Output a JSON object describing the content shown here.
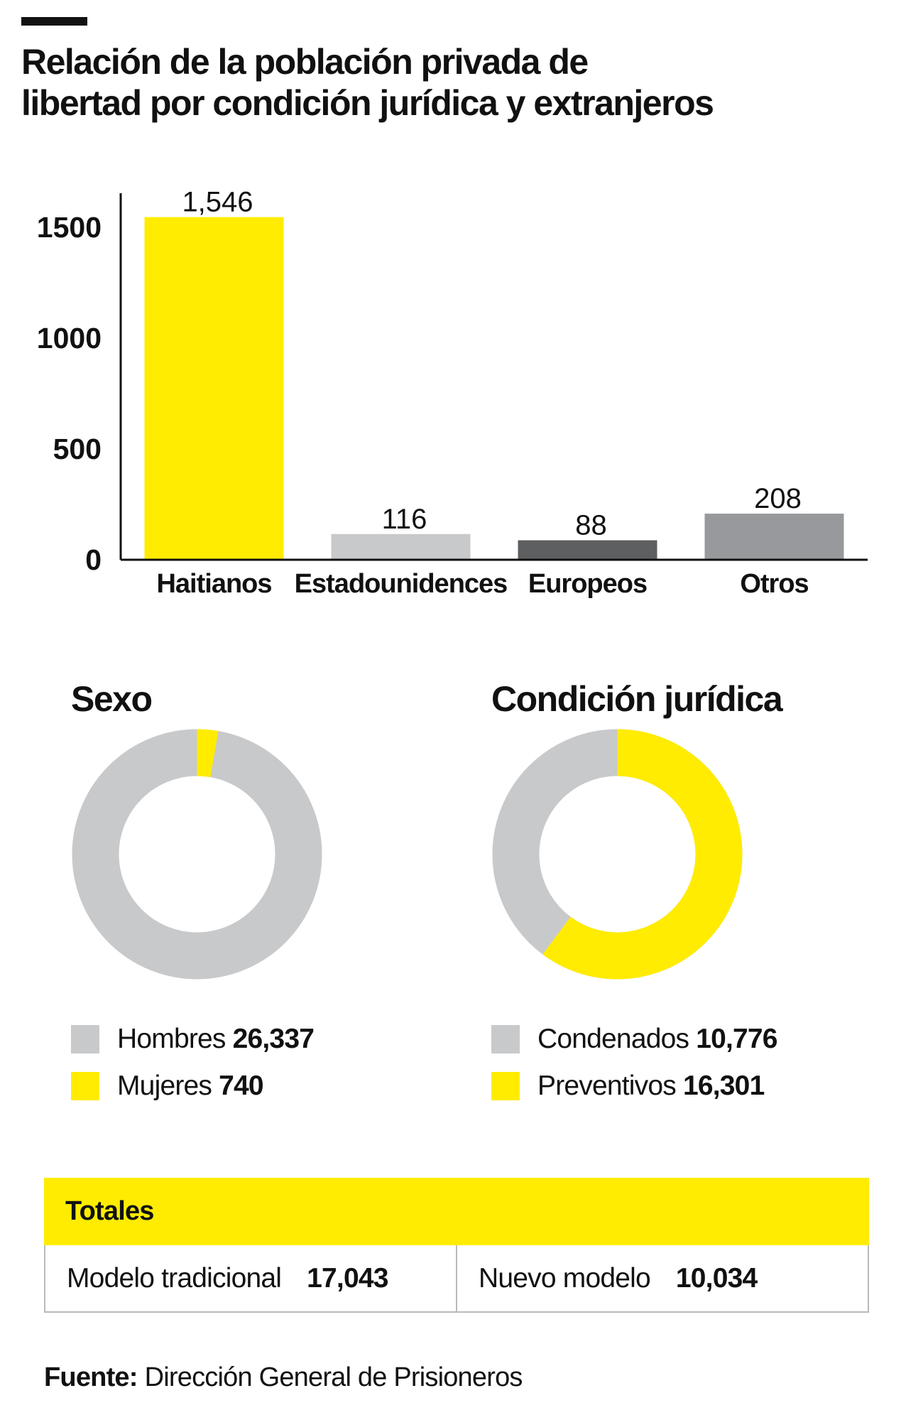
{
  "title": {
    "line1": "Relación de la población privada de",
    "line2": "libertad por condición jurídica y extranjeros"
  },
  "colors": {
    "yellow": "#ffec00",
    "light_gray": "#c8c9cb",
    "dark_gray": "#5e5f61",
    "mid_gray": "#98999c",
    "text": "#111111"
  },
  "chart_data": [
    {
      "type": "bar",
      "categories": [
        "Haitianos",
        "Estadounidences",
        "Europeos",
        "Otros"
      ],
      "values": [
        1546,
        116,
        88,
        208
      ],
      "data_labels": [
        "1,546",
        "116",
        "88",
        "208"
      ],
      "colors": [
        "#ffec00",
        "#c8c9cb",
        "#5e5f61",
        "#98999c"
      ],
      "yticks": [
        "0",
        "500",
        "1000",
        "1500"
      ],
      "ylim": [
        0,
        1600
      ],
      "grid": false
    },
    {
      "type": "pie",
      "variant": "donut",
      "title": "Sexo",
      "labels": [
        "Hombres",
        "Mujeres"
      ],
      "values": [
        26337,
        740
      ],
      "value_labels": [
        "26,337",
        "740"
      ],
      "colors": [
        "#c8c9cb",
        "#ffec00"
      ]
    },
    {
      "type": "pie",
      "variant": "donut",
      "title": "Condición jurídica",
      "labels": [
        "Condenados",
        "Preventivos"
      ],
      "values": [
        10776,
        16301
      ],
      "value_labels": [
        "10,776",
        "16,301"
      ],
      "colors": [
        "#c8c9cb",
        "#ffec00"
      ]
    }
  ],
  "totals": {
    "heading": "Totales",
    "items": [
      {
        "label": "Modelo tradicional",
        "value": "17,043"
      },
      {
        "label": "Nuevo modelo",
        "value": "10,034"
      }
    ]
  },
  "source": {
    "label": "Fuente:",
    "text": "Dirección General de Prisioneros"
  }
}
